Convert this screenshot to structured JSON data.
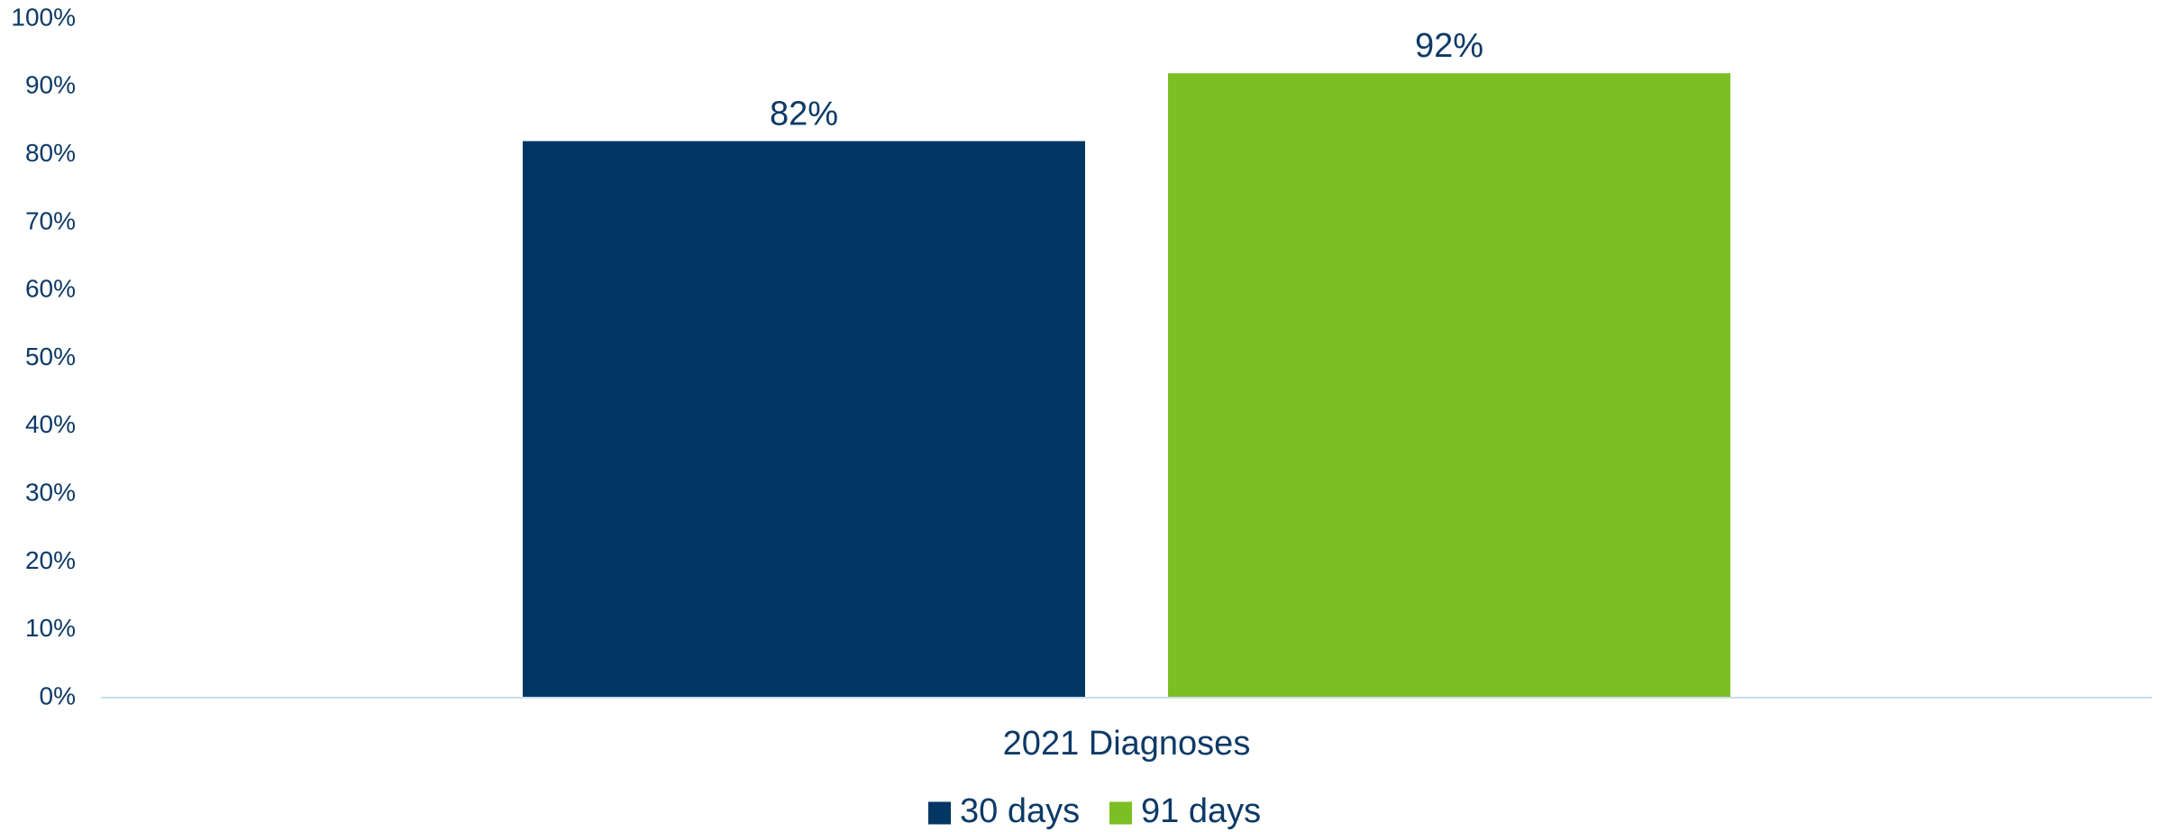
{
  "chart_data": {
    "type": "bar",
    "categories": [
      "2021 Diagnoses"
    ],
    "series": [
      {
        "name": "30 days",
        "values": [
          82
        ],
        "label": "82%",
        "color": "#023764"
      },
      {
        "name": "91 days",
        "values": [
          92
        ],
        "label": "92%",
        "color": "#7BBF23"
      }
    ],
    "y_ticks": [
      "0%",
      "10%",
      "20%",
      "30%",
      "40%",
      "50%",
      "60%",
      "70%",
      "80%",
      "90%",
      "100%"
    ],
    "ylim": [
      0,
      100
    ],
    "grid": false,
    "legend_position": "bottom",
    "title": "",
    "xlabel": "",
    "ylabel": ""
  },
  "colors": {
    "text": "#0D3A67",
    "axis": "#C9DFEF"
  }
}
